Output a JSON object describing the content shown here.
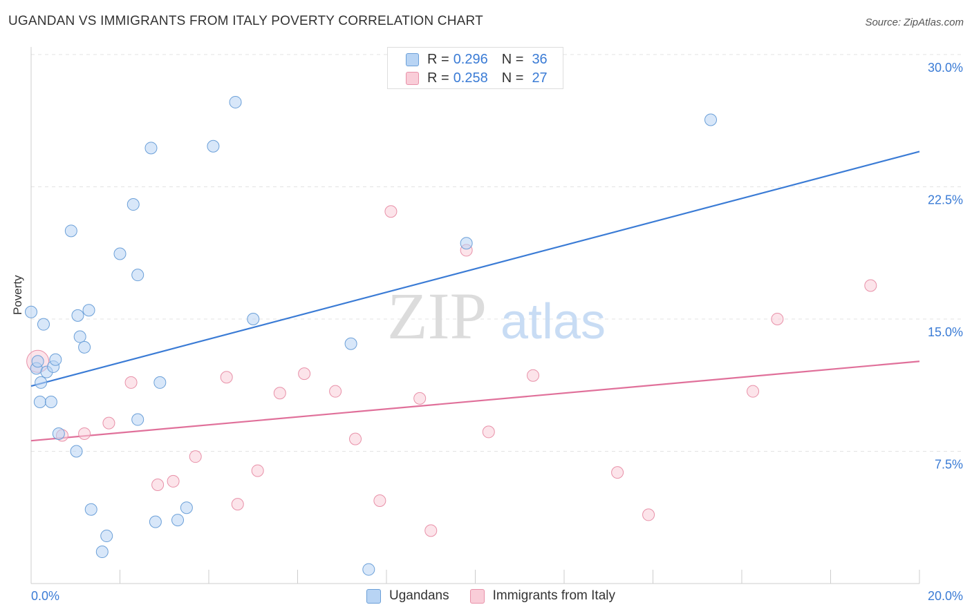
{
  "title": "UGANDAN VS IMMIGRANTS FROM ITALY POVERTY CORRELATION CHART",
  "source": "Source: ZipAtlas.com",
  "watermark": {
    "zip": "ZIP",
    "atlas": "atlas"
  },
  "legend": {
    "rows": [
      {
        "r_label": "R =",
        "r_value": "0.296",
        "n_label": "N =",
        "n_value": "36",
        "color": "#a8c8f0",
        "border": "#6a9fd8"
      },
      {
        "r_label": "R =",
        "r_value": "0.258",
        "n_label": "N =",
        "n_value": "27",
        "color": "#f8c0cf",
        "border": "#e890a8"
      }
    ]
  },
  "bottom_legend": [
    {
      "label": "Ugandans",
      "color": "#b8d4f4",
      "border": "#6a9fd8"
    },
    {
      "label": "Immigrants from Italy",
      "color": "#f9cdd8",
      "border": "#e890a8"
    }
  ],
  "chart_data": {
    "type": "scatter",
    "xlabel": "",
    "ylabel": "Poverty",
    "xlim": [
      0,
      20
    ],
    "ylim": [
      0,
      30
    ],
    "x_tick_labels": [
      "0.0%",
      "20.0%"
    ],
    "y_ticks": [
      7.5,
      15.0,
      22.5,
      30.0
    ],
    "y_tick_labels": [
      "7.5%",
      "15.0%",
      "22.5%",
      "30.0%"
    ],
    "grid": true,
    "series": [
      {
        "name": "Ugandans",
        "color": "#3a7bd5",
        "fill": "#b8d4f4",
        "points": [
          [
            0.0,
            15.4
          ],
          [
            0.12,
            12.2
          ],
          [
            0.28,
            14.7
          ],
          [
            0.22,
            11.4
          ],
          [
            0.35,
            12.0
          ],
          [
            0.2,
            10.3
          ],
          [
            0.45,
            10.3
          ],
          [
            0.5,
            12.3
          ],
          [
            0.55,
            12.7
          ],
          [
            0.62,
            8.5
          ],
          [
            0.9,
            20.0
          ],
          [
            1.05,
            15.2
          ],
          [
            1.1,
            14.0
          ],
          [
            1.2,
            13.4
          ],
          [
            1.3,
            15.5
          ],
          [
            1.02,
            7.5
          ],
          [
            1.35,
            4.2
          ],
          [
            1.6,
            1.8
          ],
          [
            1.7,
            2.7
          ],
          [
            2.0,
            18.7
          ],
          [
            2.3,
            21.5
          ],
          [
            2.4,
            9.3
          ],
          [
            2.4,
            17.5
          ],
          [
            2.7,
            24.7
          ],
          [
            2.9,
            11.4
          ],
          [
            2.8,
            3.5
          ],
          [
            3.3,
            3.6
          ],
          [
            3.5,
            4.3
          ],
          [
            4.1,
            24.8
          ],
          [
            4.6,
            27.3
          ],
          [
            5.0,
            15.0
          ],
          [
            7.2,
            13.6
          ],
          [
            7.6,
            0.8
          ],
          [
            9.8,
            19.3
          ],
          [
            15.3,
            26.3
          ],
          [
            0.15,
            12.6
          ]
        ],
        "trend": {
          "x": [
            0,
            20
          ],
          "y": [
            11.2,
            24.5
          ]
        }
      },
      {
        "name": "Immigrants from Italy",
        "color": "#e0709a",
        "fill": "#f9cdd8",
        "points": [
          [
            0.15,
            12.6
          ],
          [
            0.7,
            8.4
          ],
          [
            1.2,
            8.5
          ],
          [
            1.75,
            9.1
          ],
          [
            2.25,
            11.4
          ],
          [
            2.85,
            5.6
          ],
          [
            3.2,
            5.8
          ],
          [
            3.7,
            7.2
          ],
          [
            4.4,
            11.7
          ],
          [
            4.65,
            4.5
          ],
          [
            5.1,
            6.4
          ],
          [
            5.6,
            10.8
          ],
          [
            6.15,
            11.9
          ],
          [
            6.85,
            10.9
          ],
          [
            7.3,
            8.2
          ],
          [
            7.85,
            4.7
          ],
          [
            8.1,
            21.1
          ],
          [
            8.75,
            10.5
          ],
          [
            9.0,
            3.0
          ],
          [
            9.8,
            18.9
          ],
          [
            10.3,
            8.6
          ],
          [
            11.3,
            11.8
          ],
          [
            13.2,
            6.3
          ],
          [
            13.9,
            3.9
          ],
          [
            16.25,
            10.9
          ],
          [
            16.8,
            15.0
          ],
          [
            18.9,
            16.9
          ]
        ],
        "trend": {
          "x": [
            0,
            20
          ],
          "y": [
            8.1,
            12.6
          ]
        }
      }
    ]
  }
}
